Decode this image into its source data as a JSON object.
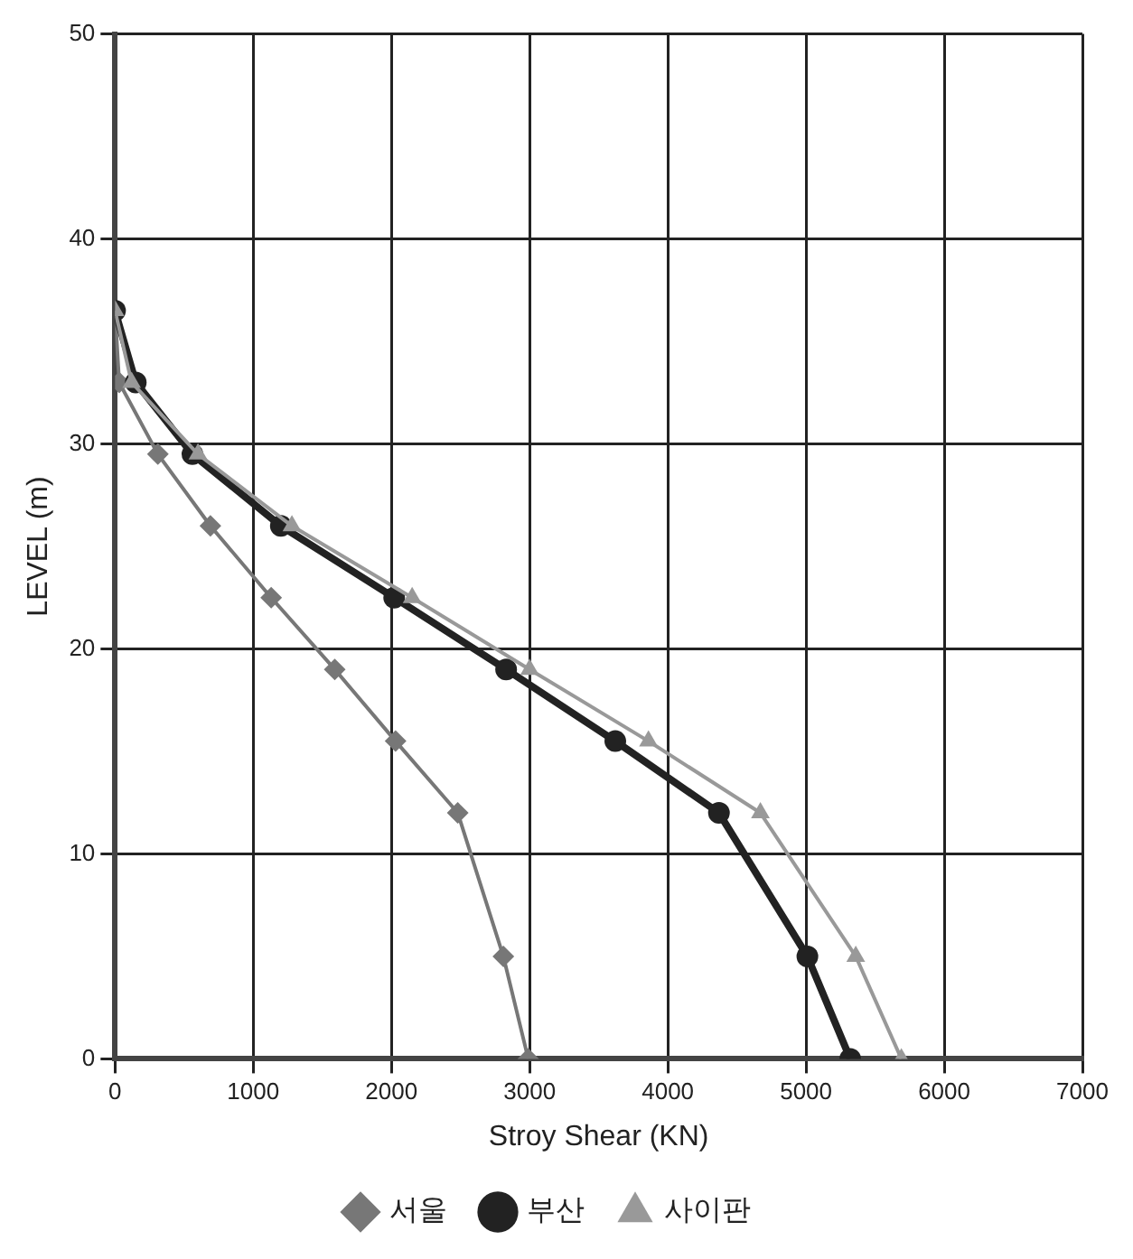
{
  "chart_data": {
    "type": "line",
    "xlabel": "Stroy Shear (KN)",
    "ylabel": "LEVEL (m)",
    "xlim": [
      0,
      7000
    ],
    "xticks": [
      0,
      1000,
      2000,
      3000,
      4000,
      5000,
      6000,
      7000
    ],
    "ylim": [
      0,
      50
    ],
    "yticks": [
      0,
      10,
      20,
      30,
      40,
      50
    ],
    "grid": true,
    "legend": "bottom",
    "series": [
      {
        "name": "서울",
        "color": "#777777",
        "marker": "diamond",
        "x": [
          0,
          30,
          310,
          690,
          1130,
          1590,
          2030,
          2480,
          2810,
          2990
        ],
        "values": [
          36.5,
          33,
          29.5,
          26,
          22.5,
          19,
          15.5,
          12,
          5,
          0
        ]
      },
      {
        "name": "부산",
        "color": "#222222",
        "marker": "circle",
        "x": [
          0,
          150,
          560,
          1200,
          2020,
          2830,
          3620,
          4370,
          5010,
          5320
        ],
        "values": [
          36.5,
          33,
          29.5,
          26,
          22.5,
          19,
          15.5,
          12,
          5,
          0
        ]
      },
      {
        "name": "사이판",
        "color": "#999999",
        "marker": "triangle",
        "x": [
          0,
          120,
          600,
          1280,
          2150,
          3000,
          3860,
          4670,
          5360,
          5690
        ],
        "values": [
          36.5,
          33,
          29.5,
          26,
          22.5,
          19,
          15.5,
          12,
          5,
          0
        ]
      }
    ]
  }
}
